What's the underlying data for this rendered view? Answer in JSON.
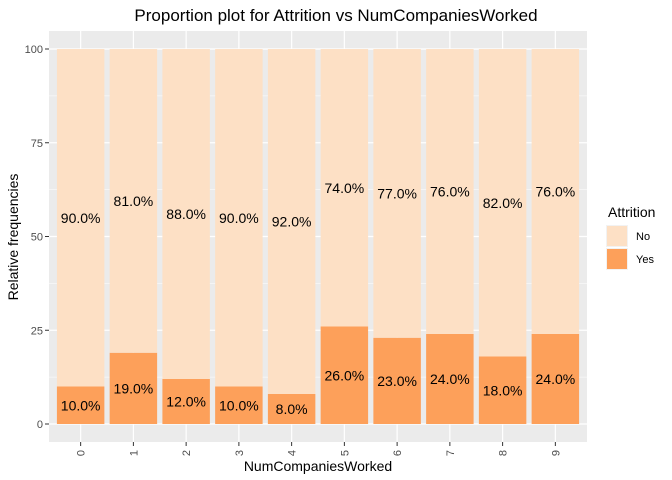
{
  "chart_data": {
    "type": "bar",
    "stacked": true,
    "title": "Proportion plot for Attrition vs NumCompaniesWorked",
    "xlabel": "NumCompaniesWorked",
    "ylabel": "Relative frequencies",
    "ylim": [
      0,
      100
    ],
    "yticks": [
      0,
      25,
      50,
      75,
      100
    ],
    "grid": true,
    "legend_position": "right",
    "legend_title": "Attrition",
    "categories": [
      "0",
      "1",
      "2",
      "3",
      "4",
      "5",
      "6",
      "7",
      "8",
      "9"
    ],
    "series": [
      {
        "name": "No",
        "color": "#fde0c5",
        "values": [
          90,
          81,
          88,
          90,
          92,
          74,
          77,
          76,
          82,
          76
        ],
        "labels": [
          "90.0%",
          "81.0%",
          "88.0%",
          "90.0%",
          "92.0%",
          "74.0%",
          "77.0%",
          "76.0%",
          "82.0%",
          "76.0%"
        ]
      },
      {
        "name": "Yes",
        "color": "#fda05a",
        "values": [
          10,
          19,
          12,
          10,
          8,
          26,
          23,
          24,
          18,
          24
        ],
        "labels": [
          "10.0%",
          "19.0%",
          "12.0%",
          "10.0%",
          "8.0%",
          "26.0%",
          "23.0%",
          "24.0%",
          "18.0%",
          "24.0%"
        ]
      }
    ]
  }
}
